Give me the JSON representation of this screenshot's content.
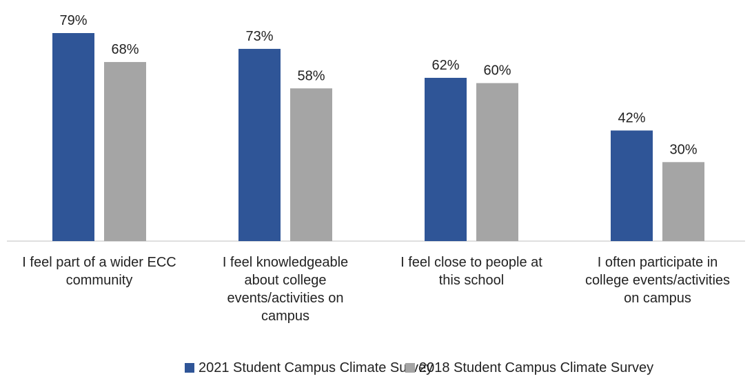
{
  "chart_data": {
    "type": "bar",
    "categories": [
      "I feel part of a wider ECC community",
      "I feel knowledgeable about college events/activities on campus",
      "I feel close to people at this school",
      "I often participate in college events/activities on campus"
    ],
    "category_lines": [
      [
        "I feel part of a wider ECC",
        "community"
      ],
      [
        "I feel knowledgeable",
        "about college",
        "events/activities on",
        "campus"
      ],
      [
        "I feel close to people at",
        "this school"
      ],
      [
        "I often participate in",
        "college events/activities",
        "on campus"
      ]
    ],
    "series": [
      {
        "name": "2021 Student Campus Climate Survey",
        "values": [
          79,
          73,
          62,
          42
        ],
        "labels": [
          "79%",
          "73%",
          "62%",
          "42%"
        ],
        "color": "#2F5597"
      },
      {
        "name": "2018 Student Campus Climate Survey",
        "values": [
          68,
          58,
          60,
          30
        ],
        "labels": [
          "68%",
          "58%",
          "60%",
          "30%"
        ],
        "color": "#A5A5A5"
      }
    ],
    "ylim": [
      0,
      79
    ],
    "grid": false,
    "legend_position": "bottom",
    "axis_color": "#BFBFBF"
  },
  "legend": {
    "item_2021": "2021 Student Campus Climate Survey",
    "item_2018": "2018 Student Campus Climate Survey"
  }
}
